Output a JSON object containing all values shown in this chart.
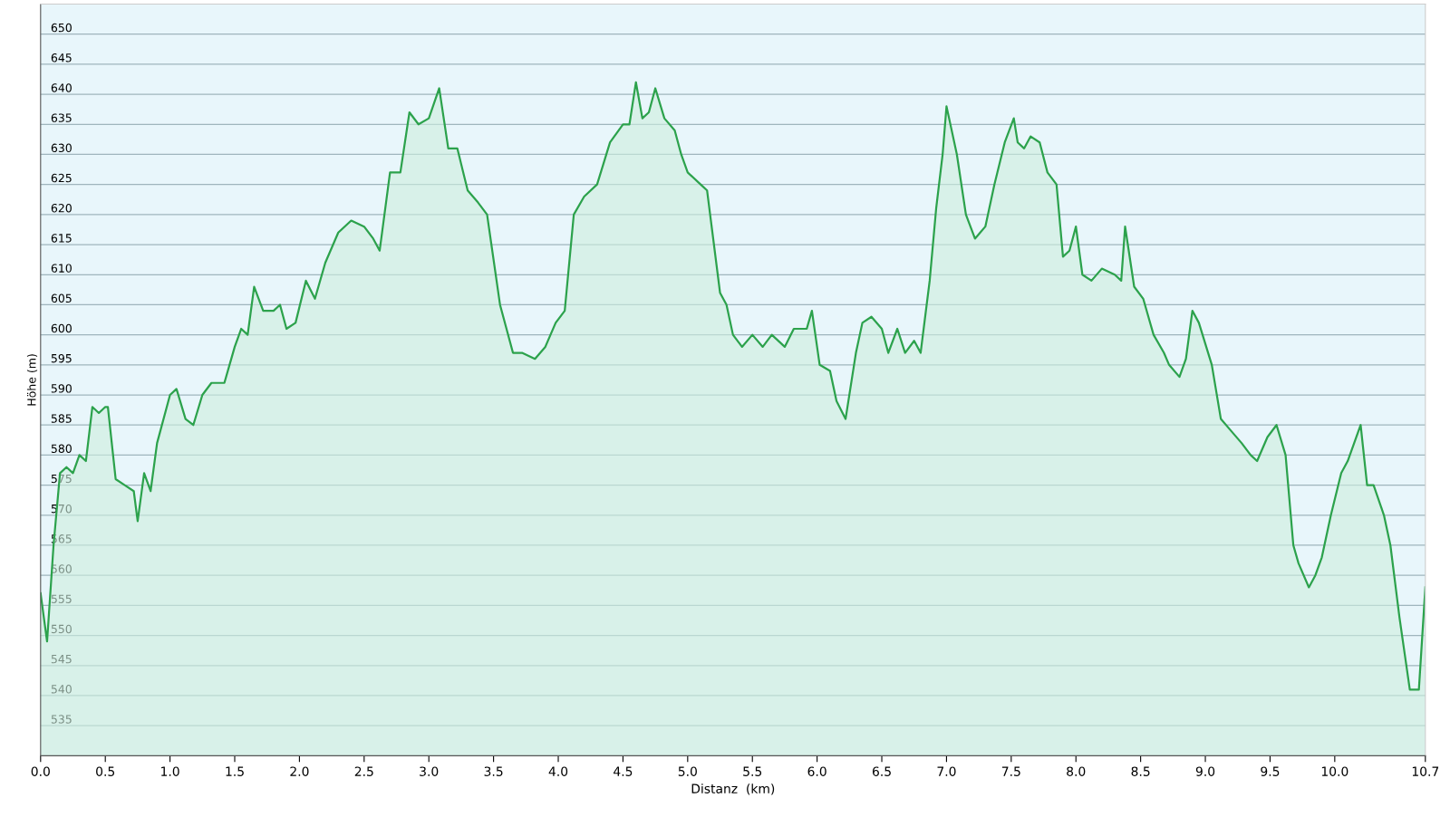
{
  "chart_data": {
    "type": "area",
    "xlabel": "Distanz  (km)",
    "ylabel": "Höhe (m)",
    "xlim": [
      0,
      10.7
    ],
    "ylim": [
      530,
      655
    ],
    "xticks": [
      {
        "value": 0,
        "label": "0.0"
      },
      {
        "value": 0.5,
        "label": "0.5"
      },
      {
        "value": 1,
        "label": "1.0"
      },
      {
        "value": 1.5,
        "label": "1.5"
      },
      {
        "value": 2,
        "label": "2.0"
      },
      {
        "value": 2.5,
        "label": "2.5"
      },
      {
        "value": 3,
        "label": "3.0"
      },
      {
        "value": 3.5,
        "label": "3.5"
      },
      {
        "value": 4,
        "label": "4.0"
      },
      {
        "value": 4.5,
        "label": "4.5"
      },
      {
        "value": 5,
        "label": "5.0"
      },
      {
        "value": 5.5,
        "label": "5.5"
      },
      {
        "value": 6,
        "label": "6.0"
      },
      {
        "value": 6.5,
        "label": "6.5"
      },
      {
        "value": 7,
        "label": "7.0"
      },
      {
        "value": 7.5,
        "label": "7.5"
      },
      {
        "value": 8,
        "label": "8.0"
      },
      {
        "value": 8.5,
        "label": "8.5"
      },
      {
        "value": 9,
        "label": "9.0"
      },
      {
        "value": 9.5,
        "label": "9.5"
      },
      {
        "value": 10,
        "label": "10.0"
      },
      {
        "value": 10.7,
        "label": "10.7"
      }
    ],
    "yticks": [
      535,
      540,
      545,
      550,
      555,
      560,
      565,
      570,
      575,
      580,
      585,
      590,
      595,
      600,
      605,
      610,
      615,
      620,
      625,
      630,
      635,
      640,
      645,
      650
    ],
    "grid": "y",
    "marker": "none",
    "line_style": "solid",
    "x": [
      0,
      0.05,
      0.1,
      0.15,
      0.2,
      0.25,
      0.3,
      0.35,
      0.4,
      0.45,
      0.5,
      0.52,
      0.58,
      0.65,
      0.72,
      0.75,
      0.8,
      0.85,
      0.9,
      1.0,
      1.05,
      1.12,
      1.18,
      1.25,
      1.32,
      1.42,
      1.5,
      1.55,
      1.6,
      1.65,
      1.72,
      1.8,
      1.85,
      1.9,
      1.97,
      2.05,
      2.12,
      2.2,
      2.3,
      2.4,
      2.5,
      2.57,
      2.62,
      2.7,
      2.78,
      2.85,
      2.92,
      3.0,
      3.08,
      3.15,
      3.22,
      3.3,
      3.38,
      3.45,
      3.55,
      3.65,
      3.72,
      3.82,
      3.9,
      3.98,
      4.05,
      4.12,
      4.2,
      4.3,
      4.4,
      4.5,
      4.55,
      4.6,
      4.65,
      4.7,
      4.75,
      4.82,
      4.9,
      4.95,
      5.0,
      5.1,
      5.15,
      5.25,
      5.3,
      5.35,
      5.42,
      5.5,
      5.58,
      5.65,
      5.75,
      5.82,
      5.92,
      5.96,
      6.02,
      6.1,
      6.15,
      6.22,
      6.3,
      6.35,
      6.42,
      6.5,
      6.55,
      6.62,
      6.68,
      6.75,
      6.8,
      6.87,
      6.92,
      6.97,
      7.0,
      7.08,
      7.15,
      7.22,
      7.3,
      7.37,
      7.45,
      7.52,
      7.55,
      7.6,
      7.65,
      7.72,
      7.78,
      7.85,
      7.9,
      7.95,
      8.0,
      8.05,
      8.12,
      8.2,
      8.3,
      8.35,
      8.38,
      8.45,
      8.52,
      8.6,
      8.68,
      8.72,
      8.8,
      8.85,
      8.9,
      8.95,
      9.05,
      9.12,
      9.2,
      9.28,
      9.35,
      9.4,
      9.48,
      9.55,
      9.62,
      9.68,
      9.72,
      9.8,
      9.85,
      9.9,
      9.97,
      10.05,
      10.1,
      10.2,
      10.25,
      10.3,
      10.38,
      10.43,
      10.5,
      10.58,
      10.65,
      10.7
    ],
    "series": [
      {
        "color": "#2ca24c",
        "values": [
          557,
          549,
          565,
          577,
          578,
          577,
          580,
          579,
          588,
          587,
          588,
          588,
          576,
          575,
          574,
          569,
          577,
          574,
          582,
          590,
          591,
          586,
          585,
          590,
          592,
          592,
          598,
          601,
          600,
          608,
          604,
          604,
          605,
          601,
          602,
          609,
          606,
          612,
          617,
          619,
          618,
          616,
          614,
          627,
          627,
          637,
          635,
          636,
          641,
          631,
          631,
          624,
          622,
          620,
          605,
          597,
          597,
          596,
          598,
          602,
          604,
          620,
          623,
          625,
          632,
          635,
          635,
          642,
          636,
          637,
          641,
          636,
          634,
          630,
          627,
          625,
          624,
          607,
          605,
          600,
          598,
          600,
          598,
          600,
          598,
          601,
          601,
          604,
          595,
          594,
          589,
          586,
          597,
          602,
          603,
          601,
          597,
          601,
          597,
          599,
          597,
          609,
          621,
          630,
          638,
          630,
          620,
          616,
          618,
          625,
          632,
          636,
          632,
          631,
          633,
          632,
          627,
          625,
          613,
          614,
          618,
          610,
          609,
          611,
          610,
          609,
          618,
          608,
          606,
          600,
          597,
          595,
          593,
          596,
          604,
          602,
          595,
          586,
          584,
          582,
          580,
          579,
          583,
          585,
          580,
          565,
          562,
          558,
          560,
          563,
          570,
          577,
          579,
          585,
          575,
          575,
          570,
          565,
          553,
          541,
          541,
          558
        ]
      }
    ]
  }
}
